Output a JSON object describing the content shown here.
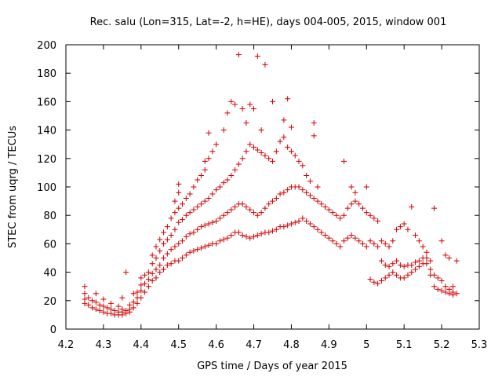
{
  "chart_data": {
    "type": "scatter",
    "title": "Rec. salu (Lon=315, Lat=-2, h=HE), days 004-005, 2015, window 001",
    "xlabel": "GPS time / Days of year 2015",
    "ylabel": "STEC from uqrg / TECUs",
    "xlim": [
      4.2,
      5.3
    ],
    "ylim": [
      0,
      200
    ],
    "x_ticks": [
      4.2,
      4.3,
      4.4,
      4.5,
      4.6,
      4.7,
      4.8,
      4.9,
      5.0,
      5.1,
      5.2,
      5.3
    ],
    "x_tick_labels": [
      "4.2",
      "4.3",
      "4.4",
      "4.5",
      "4.6",
      "4.7",
      "4.8",
      "4.9",
      "5",
      "5.1",
      "5.2",
      "5.3"
    ],
    "y_ticks": [
      0,
      20,
      40,
      60,
      80,
      100,
      120,
      140,
      160,
      180,
      200
    ],
    "y_tick_labels": [
      "0",
      "20",
      "40",
      "60",
      "80",
      "100",
      "120",
      "140",
      "160",
      "180",
      "200"
    ],
    "grid": false,
    "marker": "plus",
    "color": "#d00000",
    "points": [
      [
        4.25,
        30
      ],
      [
        4.25,
        25
      ],
      [
        4.25,
        21
      ],
      [
        4.25,
        18
      ],
      [
        4.26,
        17
      ],
      [
        4.26,
        22
      ],
      [
        4.27,
        15
      ],
      [
        4.27,
        20
      ],
      [
        4.28,
        14
      ],
      [
        4.28,
        19
      ],
      [
        4.28,
        25
      ],
      [
        4.29,
        13
      ],
      [
        4.29,
        17
      ],
      [
        4.3,
        12
      ],
      [
        4.3,
        16
      ],
      [
        4.3,
        21
      ],
      [
        4.31,
        11
      ],
      [
        4.31,
        15
      ],
      [
        4.32,
        11
      ],
      [
        4.32,
        14
      ],
      [
        4.32,
        18
      ],
      [
        4.33,
        10
      ],
      [
        4.33,
        13
      ],
      [
        4.34,
        10
      ],
      [
        4.34,
        12
      ],
      [
        4.34,
        16
      ],
      [
        4.35,
        10
      ],
      [
        4.35,
        12
      ],
      [
        4.35,
        14
      ],
      [
        4.35,
        22
      ],
      [
        4.36,
        11
      ],
      [
        4.36,
        13
      ],
      [
        4.36,
        40
      ],
      [
        4.37,
        12
      ],
      [
        4.37,
        14
      ],
      [
        4.37,
        17
      ],
      [
        4.38,
        15
      ],
      [
        4.38,
        19
      ],
      [
        4.38,
        25
      ],
      [
        4.39,
        18
      ],
      [
        4.39,
        22
      ],
      [
        4.39,
        26
      ],
      [
        4.4,
        22
      ],
      [
        4.4,
        27
      ],
      [
        4.4,
        31
      ],
      [
        4.4,
        36
      ],
      [
        4.41,
        26
      ],
      [
        4.41,
        32
      ],
      [
        4.41,
        38
      ],
      [
        4.42,
        30
      ],
      [
        4.42,
        35
      ],
      [
        4.42,
        40
      ],
      [
        4.43,
        34
      ],
      [
        4.43,
        39
      ],
      [
        4.43,
        46
      ],
      [
        4.43,
        52
      ],
      [
        4.44,
        36
      ],
      [
        4.44,
        42
      ],
      [
        4.44,
        50
      ],
      [
        4.44,
        58
      ],
      [
        4.45,
        40
      ],
      [
        4.45,
        45
      ],
      [
        4.45,
        55
      ],
      [
        4.45,
        63
      ],
      [
        4.46,
        42
      ],
      [
        4.46,
        50
      ],
      [
        4.46,
        60
      ],
      [
        4.46,
        68
      ],
      [
        4.47,
        45
      ],
      [
        4.47,
        53
      ],
      [
        4.47,
        63
      ],
      [
        4.47,
        72
      ],
      [
        4.48,
        46
      ],
      [
        4.48,
        56
      ],
      [
        4.48,
        66
      ],
      [
        4.48,
        78
      ],
      [
        4.49,
        48
      ],
      [
        4.49,
        58
      ],
      [
        4.49,
        70
      ],
      [
        4.49,
        82
      ],
      [
        4.49,
        90
      ],
      [
        4.5,
        48
      ],
      [
        4.5,
        60
      ],
      [
        4.5,
        75
      ],
      [
        4.5,
        85
      ],
      [
        4.5,
        96
      ],
      [
        4.5,
        102
      ],
      [
        4.51,
        50
      ],
      [
        4.51,
        62
      ],
      [
        4.51,
        77
      ],
      [
        4.51,
        88
      ],
      [
        4.52,
        52
      ],
      [
        4.52,
        65
      ],
      [
        4.52,
        80
      ],
      [
        4.52,
        92
      ],
      [
        4.53,
        54
      ],
      [
        4.53,
        67
      ],
      [
        4.53,
        82
      ],
      [
        4.53,
        95
      ],
      [
        4.54,
        55
      ],
      [
        4.54,
        68
      ],
      [
        4.54,
        84
      ],
      [
        4.54,
        100
      ],
      [
        4.55,
        56
      ],
      [
        4.55,
        70
      ],
      [
        4.55,
        86
      ],
      [
        4.55,
        105
      ],
      [
        4.56,
        57
      ],
      [
        4.56,
        72
      ],
      [
        4.56,
        88
      ],
      [
        4.56,
        108
      ],
      [
        4.57,
        58
      ],
      [
        4.57,
        73
      ],
      [
        4.57,
        90
      ],
      [
        4.57,
        112
      ],
      [
        4.57,
        118
      ],
      [
        4.58,
        59
      ],
      [
        4.58,
        74
      ],
      [
        4.58,
        92
      ],
      [
        4.58,
        120
      ],
      [
        4.58,
        138
      ],
      [
        4.59,
        60
      ],
      [
        4.59,
        75
      ],
      [
        4.59,
        95
      ],
      [
        4.59,
        125
      ],
      [
        4.6,
        60
      ],
      [
        4.6,
        76
      ],
      [
        4.6,
        98
      ],
      [
        4.6,
        130
      ],
      [
        4.61,
        62
      ],
      [
        4.61,
        78
      ],
      [
        4.61,
        100
      ],
      [
        4.62,
        63
      ],
      [
        4.62,
        80
      ],
      [
        4.62,
        103
      ],
      [
        4.62,
        140
      ],
      [
        4.63,
        64
      ],
      [
        4.63,
        82
      ],
      [
        4.63,
        105
      ],
      [
        4.63,
        152
      ],
      [
        4.64,
        66
      ],
      [
        4.64,
        84
      ],
      [
        4.64,
        108
      ],
      [
        4.64,
        160
      ],
      [
        4.65,
        68
      ],
      [
        4.65,
        86
      ],
      [
        4.65,
        112
      ],
      [
        4.65,
        158
      ],
      [
        4.66,
        68
      ],
      [
        4.66,
        88
      ],
      [
        4.66,
        116
      ],
      [
        4.66,
        193
      ],
      [
        4.67,
        66
      ],
      [
        4.67,
        88
      ],
      [
        4.67,
        120
      ],
      [
        4.67,
        155
      ],
      [
        4.68,
        65
      ],
      [
        4.68,
        86
      ],
      [
        4.68,
        125
      ],
      [
        4.68,
        145
      ],
      [
        4.69,
        64
      ],
      [
        4.69,
        84
      ],
      [
        4.69,
        130
      ],
      [
        4.69,
        158
      ],
      [
        4.7,
        65
      ],
      [
        4.7,
        82
      ],
      [
        4.7,
        128
      ],
      [
        4.7,
        155
      ],
      [
        4.71,
        66
      ],
      [
        4.71,
        80
      ],
      [
        4.71,
        126
      ],
      [
        4.71,
        192
      ],
      [
        4.72,
        67
      ],
      [
        4.72,
        82
      ],
      [
        4.72,
        124
      ],
      [
        4.72,
        140
      ],
      [
        4.73,
        68
      ],
      [
        4.73,
        85
      ],
      [
        4.73,
        122
      ],
      [
        4.73,
        186
      ],
      [
        4.74,
        68
      ],
      [
        4.74,
        88
      ],
      [
        4.74,
        120
      ],
      [
        4.75,
        69
      ],
      [
        4.75,
        90
      ],
      [
        4.75,
        118
      ],
      [
        4.75,
        160
      ],
      [
        4.76,
        70
      ],
      [
        4.76,
        92
      ],
      [
        4.76,
        125
      ],
      [
        4.77,
        72
      ],
      [
        4.77,
        95
      ],
      [
        4.77,
        132
      ],
      [
        4.78,
        72
      ],
      [
        4.78,
        96
      ],
      [
        4.78,
        135
      ],
      [
        4.78,
        147
      ],
      [
        4.79,
        73
      ],
      [
        4.79,
        98
      ],
      [
        4.79,
        128
      ],
      [
        4.79,
        162
      ],
      [
        4.8,
        74
      ],
      [
        4.8,
        100
      ],
      [
        4.8,
        125
      ],
      [
        4.8,
        142
      ],
      [
        4.81,
        75
      ],
      [
        4.81,
        100
      ],
      [
        4.81,
        122
      ],
      [
        4.82,
        76
      ],
      [
        4.82,
        100
      ],
      [
        4.82,
        118
      ],
      [
        4.83,
        78
      ],
      [
        4.83,
        98
      ],
      [
        4.83,
        115
      ],
      [
        4.84,
        76
      ],
      [
        4.84,
        96
      ],
      [
        4.84,
        108
      ],
      [
        4.85,
        74
      ],
      [
        4.85,
        94
      ],
      [
        4.85,
        104
      ],
      [
        4.86,
        72
      ],
      [
        4.86,
        92
      ],
      [
        4.86,
        136
      ],
      [
        4.86,
        145
      ],
      [
        4.87,
        70
      ],
      [
        4.87,
        90
      ],
      [
        4.87,
        100
      ],
      [
        4.88,
        68
      ],
      [
        4.88,
        88
      ],
      [
        4.89,
        66
      ],
      [
        4.89,
        86
      ],
      [
        4.9,
        64
      ],
      [
        4.9,
        84
      ],
      [
        4.91,
        62
      ],
      [
        4.91,
        82
      ],
      [
        4.92,
        60
      ],
      [
        4.92,
        80
      ],
      [
        4.93,
        58
      ],
      [
        4.93,
        78
      ],
      [
        4.94,
        62
      ],
      [
        4.94,
        80
      ],
      [
        4.94,
        118
      ],
      [
        4.95,
        64
      ],
      [
        4.95,
        85
      ],
      [
        4.96,
        66
      ],
      [
        4.96,
        88
      ],
      [
        4.96,
        100
      ],
      [
        4.97,
        64
      ],
      [
        4.97,
        90
      ],
      [
        4.97,
        96
      ],
      [
        4.98,
        62
      ],
      [
        4.98,
        88
      ],
      [
        4.99,
        60
      ],
      [
        4.99,
        85
      ],
      [
        5.0,
        58
      ],
      [
        5.0,
        82
      ],
      [
        5.0,
        100
      ],
      [
        5.01,
        35
      ],
      [
        5.01,
        62
      ],
      [
        5.01,
        80
      ],
      [
        5.02,
        33
      ],
      [
        5.02,
        60
      ],
      [
        5.02,
        78
      ],
      [
        5.03,
        32
      ],
      [
        5.03,
        58
      ],
      [
        5.03,
        76
      ],
      [
        5.04,
        34
      ],
      [
        5.04,
        48
      ],
      [
        5.04,
        62
      ],
      [
        5.05,
        36
      ],
      [
        5.05,
        45
      ],
      [
        5.05,
        60
      ],
      [
        5.06,
        38
      ],
      [
        5.06,
        44
      ],
      [
        5.06,
        58
      ],
      [
        5.07,
        40
      ],
      [
        5.07,
        46
      ],
      [
        5.07,
        62
      ],
      [
        5.08,
        38
      ],
      [
        5.08,
        48
      ],
      [
        5.08,
        70
      ],
      [
        5.09,
        36
      ],
      [
        5.09,
        45
      ],
      [
        5.09,
        72
      ],
      [
        5.1,
        36
      ],
      [
        5.1,
        44
      ],
      [
        5.1,
        74
      ],
      [
        5.11,
        38
      ],
      [
        5.11,
        45
      ],
      [
        5.11,
        70
      ],
      [
        5.12,
        40
      ],
      [
        5.12,
        45
      ],
      [
        5.12,
        86
      ],
      [
        5.13,
        42
      ],
      [
        5.13,
        47
      ],
      [
        5.13,
        66
      ],
      [
        5.14,
        44
      ],
      [
        5.14,
        48
      ],
      [
        5.14,
        62
      ],
      [
        5.15,
        46
      ],
      [
        5.15,
        50
      ],
      [
        5.15,
        58
      ],
      [
        5.16,
        46
      ],
      [
        5.16,
        50
      ],
      [
        5.16,
        54
      ],
      [
        5.17,
        38
      ],
      [
        5.17,
        42
      ],
      [
        5.17,
        48
      ],
      [
        5.18,
        30
      ],
      [
        5.18,
        38
      ],
      [
        5.18,
        85
      ],
      [
        5.19,
        28
      ],
      [
        5.19,
        36
      ],
      [
        5.2,
        27
      ],
      [
        5.2,
        34
      ],
      [
        5.2,
        62
      ],
      [
        5.21,
        26
      ],
      [
        5.21,
        30
      ],
      [
        5.21,
        52
      ],
      [
        5.22,
        25
      ],
      [
        5.22,
        28
      ],
      [
        5.22,
        50
      ],
      [
        5.23,
        24
      ],
      [
        5.23,
        26
      ],
      [
        5.23,
        30
      ],
      [
        5.24,
        25
      ],
      [
        5.24,
        48
      ]
    ]
  }
}
